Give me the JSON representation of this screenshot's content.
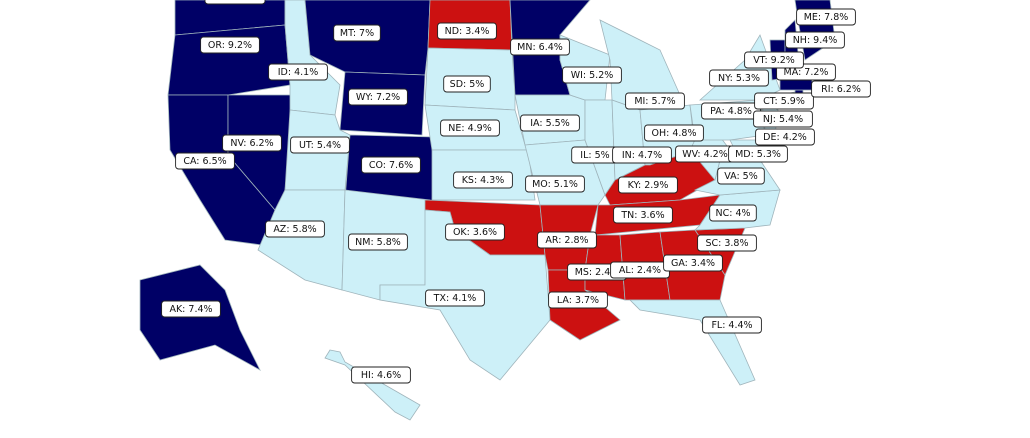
{
  "states": [
    {
      "label": "OR: 9.2%",
      "value": 9.2,
      "color": "#000066"
    },
    {
      "label": "CA: 6.5%",
      "value": 6.5,
      "color": "#000066"
    },
    {
      "label": "NV: 6.2%",
      "value": 6.2,
      "color": "#000066"
    },
    {
      "label": "ID: 4.1%",
      "value": 4.1,
      "color": "#cdf0f8"
    },
    {
      "label": "MT: 7%",
      "value": 7,
      "color": "#000066"
    },
    {
      "label": "WY: 7.2%",
      "value": 7.2,
      "color": "#000066"
    },
    {
      "label": "UT: 5.4%",
      "value": 5.4,
      "color": "#cdf0f8"
    },
    {
      "label": "CO: 7.6%",
      "value": 7.6,
      "color": "#000066"
    },
    {
      "label": "AZ: 5.8%",
      "value": 5.8,
      "color": "#cdf0f8"
    },
    {
      "label": "NM: 5.8%",
      "value": 5.8,
      "color": "#cdf0f8"
    },
    {
      "label": "ND: 3.4%",
      "value": 3.4,
      "color": "#cc1111"
    },
    {
      "label": "SD: 5%",
      "value": 5,
      "color": "#cdf0f8"
    },
    {
      "label": "NE: 4.9%",
      "value": 4.9,
      "color": "#cdf0f8"
    },
    {
      "label": "KS: 4.3%",
      "value": 4.3,
      "color": "#cdf0f8"
    },
    {
      "label": "OK: 3.6%",
      "value": 3.6,
      "color": "#cc1111"
    },
    {
      "label": "TX: 4.1%",
      "value": 4.1,
      "color": "#cdf0f8"
    },
    {
      "label": "MN: 6.4%",
      "value": 6.4,
      "color": "#000066"
    },
    {
      "label": "IA: 5.5%",
      "value": 5.5,
      "color": "#cdf0f8"
    },
    {
      "label": "MO: 5.1%",
      "value": 5.1,
      "color": "#cdf0f8"
    },
    {
      "label": "AR: 2.8%",
      "value": 2.8,
      "color": "#cc1111"
    },
    {
      "label": "LA: 3.7%",
      "value": 3.7,
      "color": "#cc1111"
    },
    {
      "label": "WI: 5.2%",
      "value": 5.2,
      "color": "#cdf0f8"
    },
    {
      "label": "IL: 5%",
      "value": 5,
      "color": "#cdf0f8"
    },
    {
      "label": "MI: 5.7%",
      "value": 5.7,
      "color": "#cdf0f8"
    },
    {
      "label": "IN: 4.7%",
      "value": 4.7,
      "color": "#cdf0f8"
    },
    {
      "label": "OH: 4.8%",
      "value": 4.8,
      "color": "#cdf0f8"
    },
    {
      "label": "KY: 2.9%",
      "value": 2.9,
      "color": "#cc1111"
    },
    {
      "label": "TN: 3.6%",
      "value": 3.6,
      "color": "#cc1111"
    },
    {
      "label": "MS: 2.4%",
      "value": 2.4,
      "color": "#cc1111"
    },
    {
      "label": "AL: 2.4%",
      "value": 2.4,
      "color": "#cc1111"
    },
    {
      "label": "GA: 3.4%",
      "value": 3.4,
      "color": "#cc1111"
    },
    {
      "label": "SC: 3.8%",
      "value": 3.8,
      "color": "#cc1111"
    },
    {
      "label": "NC: 4%",
      "value": 4,
      "color": "#cdf0f8"
    },
    {
      "label": "FL: 4.4%",
      "value": 4.4,
      "color": "#cdf0f8"
    },
    {
      "label": "VA: 5%",
      "value": 5,
      "color": "#cdf0f8"
    },
    {
      "label": "WV: 4.2%",
      "value": 4.2,
      "color": "#cdf0f8"
    },
    {
      "label": "PA: 4.8%",
      "value": 4.8,
      "color": "#cdf0f8"
    },
    {
      "label": "NY: 5.3%",
      "value": 5.3,
      "color": "#cdf0f8"
    },
    {
      "label": "MD: 5.3%",
      "value": 5.3,
      "color": "#cdf0f8"
    },
    {
      "label": "DE: 4.2%",
      "value": 4.2,
      "color": "#cdf0f8"
    },
    {
      "label": "NJ: 5.4%",
      "value": 5.4,
      "color": "#cdf0f8"
    },
    {
      "label": "CT: 5.9%",
      "value": 5.9,
      "color": "#cdf0f8"
    },
    {
      "label": "RI: 6.2%",
      "value": 6.2,
      "color": "#000066"
    },
    {
      "label": "MA: 7.2%",
      "value": 7.2,
      "color": "#000066"
    },
    {
      "label": "VT: 9.2%",
      "value": 9.2,
      "color": "#000066"
    },
    {
      "label": "NH: 9.4%",
      "value": 9.4,
      "color": "#000066"
    },
    {
      "label": "ME: 7.8%",
      "value": 7.8,
      "color": "#000066"
    },
    {
      "label": "AK: 7.4%",
      "value": 7.4,
      "color": "#000066"
    },
    {
      "label": "HI: 4.6%",
      "value": 4.6,
      "color": "#cdf0f8"
    }
  ]
}
